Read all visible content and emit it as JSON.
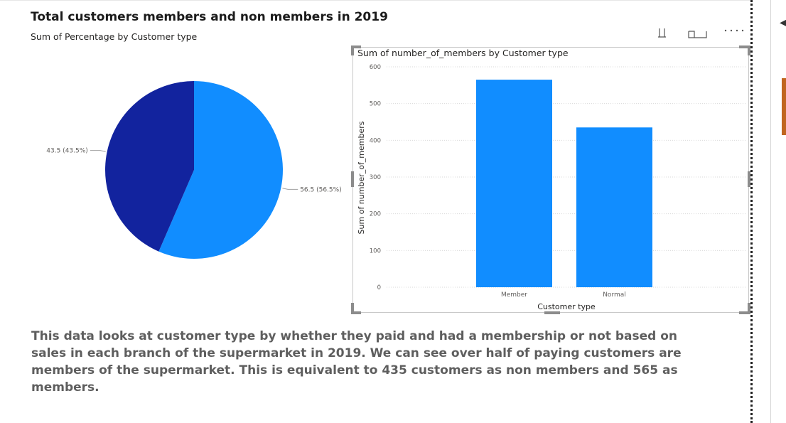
{
  "header": {
    "title": "Total customers members and non members in 2019",
    "subtitle": "Sum of Percentage by Customer type"
  },
  "description": "This data looks at customer type by whether they paid and had a membership or not based on sales in each branch of the supermarket in 2019. We can see over half of paying customers are members of the supermarket. This is equivalent to 435 customers as non members and 565 as members.",
  "colors": {
    "member": "#118dff",
    "normal": "#12239e",
    "bar": "#118dff",
    "text": "#252423",
    "muted": "#605e5c",
    "grid": "#d9d9d9"
  },
  "icons": [
    "pin-icon",
    "focus-mode-icon",
    "more-options-icon",
    "collapse-pane-arrow-icon"
  ],
  "chart_data": [
    {
      "type": "pie",
      "title": "Total customers members and non members in 2019",
      "subtitle": "Sum of Percentage by Customer type",
      "categories": [
        "Member",
        "Normal"
      ],
      "values": [
        56.5,
        43.5
      ],
      "labels": [
        "56.5 (56.5%)",
        "43.5 (43.5%)"
      ],
      "colors": [
        "#118dff",
        "#12239e"
      ],
      "start_angle_deg": 0,
      "direction": "clockwise"
    },
    {
      "type": "bar",
      "title": "Sum of number_of_members by Customer type",
      "categories": [
        "Member",
        "Normal"
      ],
      "values": [
        565,
        435
      ],
      "xlabel": "Customer type",
      "ylabel": "Sum of number_of_members",
      "ylim": [
        0,
        600
      ],
      "yticks": [
        0,
        100,
        200,
        300,
        400,
        500,
        600
      ],
      "grid": true
    }
  ]
}
